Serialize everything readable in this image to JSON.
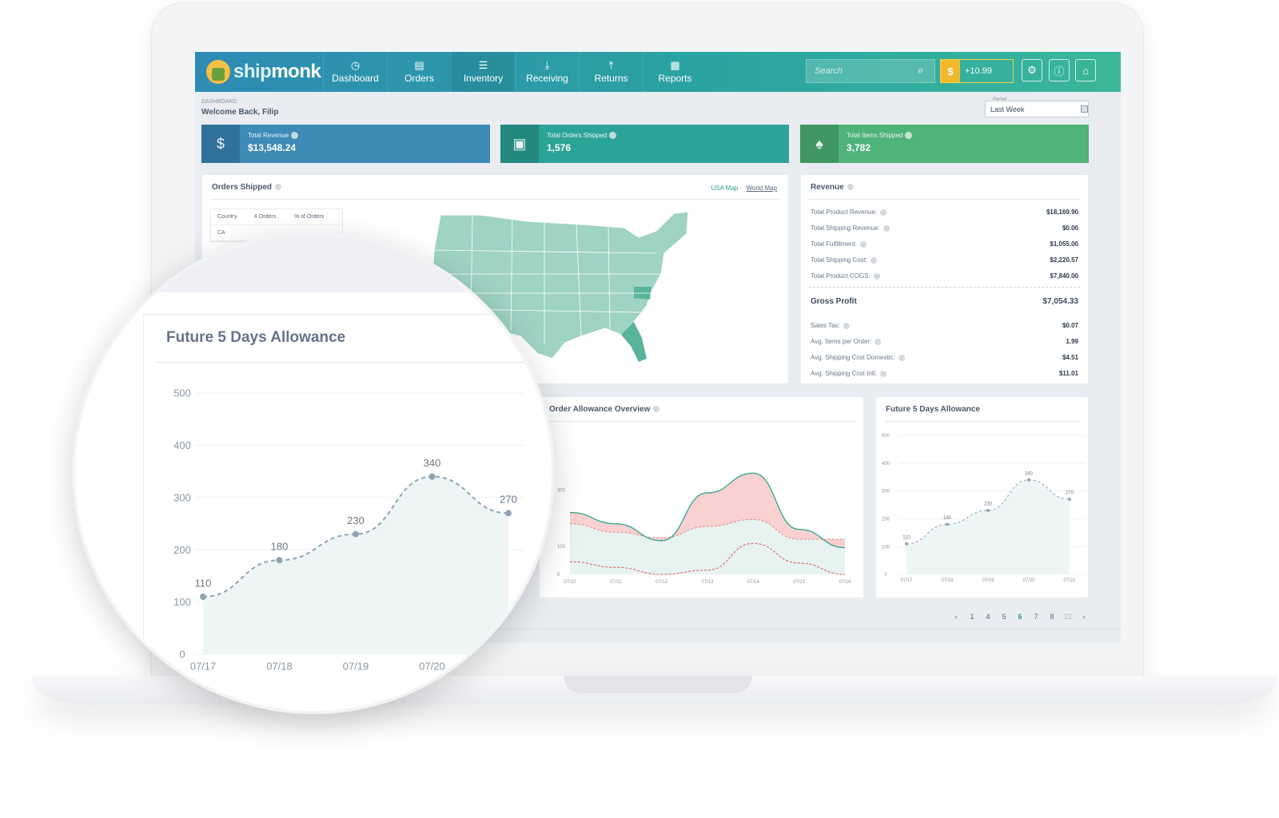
{
  "brand": {
    "part1": "ship",
    "part2": "monk"
  },
  "nav": [
    {
      "label": "Dashboard",
      "icon": "clock-icon",
      "glyph": "◷"
    },
    {
      "label": "Orders",
      "icon": "document-icon",
      "glyph": "▤"
    },
    {
      "label": "Inventory",
      "icon": "clipboard-icon",
      "glyph": "☰"
    },
    {
      "label": "Receiving",
      "icon": "download-icon",
      "glyph": "⤓"
    },
    {
      "label": "Returns",
      "icon": "return-icon",
      "glyph": "⤒"
    },
    {
      "label": "Reports",
      "icon": "report-icon",
      "glyph": "▦"
    }
  ],
  "search": {
    "placeholder": "Search"
  },
  "credit": {
    "icon": "dollar-icon",
    "glyph": "$",
    "value": "+10.99"
  },
  "toolbar_icons": [
    "gear-icon",
    "info-icon",
    "lock-icon"
  ],
  "header": {
    "breadcrumb": "DASHBOARD",
    "welcome": "Welcome Back, Filip",
    "period_label": "Period",
    "period_value": "Last Week"
  },
  "stats": [
    {
      "label": "Total Revenue",
      "value": "$13,548.24",
      "color": "#3d8bb6",
      "icon_color": "#2f6f98",
      "icon": "dollar-icon"
    },
    {
      "label": "Total Orders Shipped",
      "value": "1,576",
      "color": "#2ca397",
      "icon_color": "#23867c",
      "icon": "box-icon"
    },
    {
      "label": "Total Items Shipped",
      "value": "3,782",
      "color": "#4fb37a",
      "icon_color": "#3e9461",
      "icon": "shirt-icon"
    }
  ],
  "orders_panel": {
    "title": "Orders Shipped",
    "links": [
      "USA Map",
      "World Map"
    ],
    "table_headers": [
      "Country",
      "# Orders",
      "% of Orders"
    ],
    "table_rows": [
      "CA"
    ]
  },
  "revenue": {
    "title": "Revenue",
    "rows": [
      {
        "label": "Total Product Revenue:",
        "value": "$18,169.90"
      },
      {
        "label": "Total Shipping Revenue:",
        "value": "$0.00"
      },
      {
        "label": "Total Fulfillment:",
        "value": "$1,055.00"
      },
      {
        "label": "Total Shipping Cost:",
        "value": "$2,220.57"
      },
      {
        "label": "Total Product COGS:",
        "value": "$7,840.00"
      }
    ],
    "gross_label": "Gross Profit",
    "gross_value": "$7,054.33",
    "extra": [
      {
        "label": "Sales Tax:",
        "value": "$0.07"
      },
      {
        "label": "Avg. Items per Order:",
        "value": "1.99"
      },
      {
        "label": "Avg. Shipping Cost Domestic:",
        "value": "$4.51"
      },
      {
        "label": "Avg. Shipping Cost Intl:",
        "value": "$11.01"
      }
    ]
  },
  "pagination": {
    "pages": [
      "1",
      "4",
      "5",
      "6",
      "7",
      "8",
      "22"
    ],
    "active": "6"
  },
  "chart_data": [
    {
      "type": "area",
      "title": "Order Allowance Overview",
      "x": [
        "07/10",
        "07/11",
        "07/12",
        "07/13",
        "07/14",
        "07/15",
        "07/16"
      ],
      "ylabels": [
        "0",
        "100",
        "300"
      ],
      "ylim": [
        0,
        500
      ],
      "series": [
        {
          "values": [
            220,
            180,
            120,
            290,
            360,
            160,
            95
          ],
          "color": "#3aa88d"
        },
        {
          "values": [
            180,
            150,
            130,
            170,
            195,
            125,
            125
          ],
          "color": "#e58a8a"
        },
        {
          "values": [
            45,
            25,
            0,
            15,
            110,
            40,
            0
          ],
          "color": "#e04f4f"
        }
      ],
      "colors": {
        "fill_red": "#f8c9c9",
        "fill_teal": "#e7f3f1"
      }
    },
    {
      "type": "line",
      "title": "Future 5 Days Allowance",
      "x": [
        "07/17",
        "07/18",
        "07/19",
        "07/20",
        "07/21"
      ],
      "values": [
        110,
        180,
        230,
        340,
        270
      ],
      "yticks": [
        0,
        100,
        200,
        300,
        400,
        500
      ],
      "ylim": [
        0,
        500
      ],
      "grid": true,
      "colors": {
        "line": "#8fa3b3",
        "fill": "#eef6f5"
      }
    }
  ],
  "magnifier": {
    "title": "Future 5 Days Allowance"
  }
}
